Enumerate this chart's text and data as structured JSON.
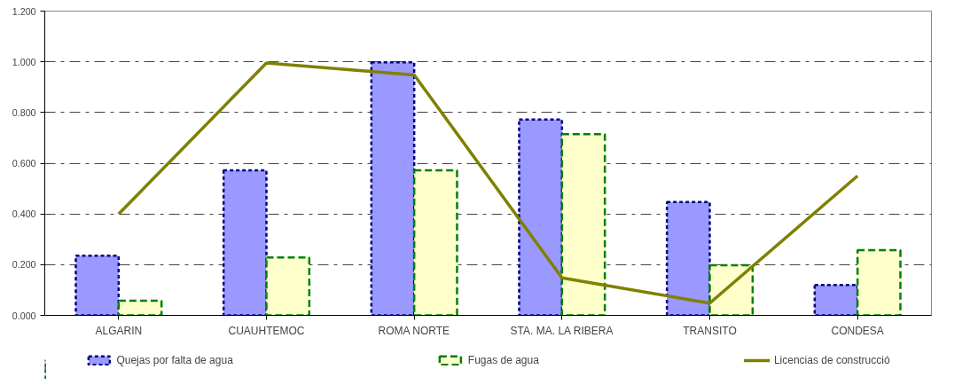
{
  "chart_data": {
    "type": "bar",
    "categories": [
      "ALGARIN",
      "CUAUHTEMOC",
      "ROMA NORTE",
      "STA. MA. LA RIBERA",
      "TRANSITO",
      "CONDESA"
    ],
    "series": [
      {
        "name": "Quejas por falta de agua",
        "color": "#9999ff",
        "line_style": "dotted",
        "values": [
          0.235,
          0.572,
          0.998,
          0.772,
          0.447,
          0.12
        ]
      },
      {
        "name": "Fugas de agua",
        "color": "#ffffcc",
        "line_style": "dashed",
        "values": [
          0.058,
          0.228,
          0.572,
          0.715,
          0.198,
          0.257
        ]
      },
      {
        "name": "Licencias de construcció",
        "type": "line",
        "color": "#808000",
        "line_style": "solid",
        "values": [
          0.4,
          0.995,
          0.948,
          0.148,
          0.048,
          0.55
        ]
      }
    ],
    "ylim": [
      0,
      1.2
    ],
    "yticks": [
      {
        "value": 0,
        "label": "0.000"
      },
      {
        "value": 0.2,
        "label": "0.200"
      },
      {
        "value": 0.4,
        "label": "0.400"
      },
      {
        "value": 0.6,
        "label": "0.600"
      },
      {
        "value": 0.8,
        "label": "0.800"
      },
      {
        "value": 1.0,
        "label": "1.000"
      },
      {
        "value": 1.2,
        "label": "1.200"
      }
    ],
    "grid": "y",
    "legend": "bottom",
    "marker": "none"
  }
}
